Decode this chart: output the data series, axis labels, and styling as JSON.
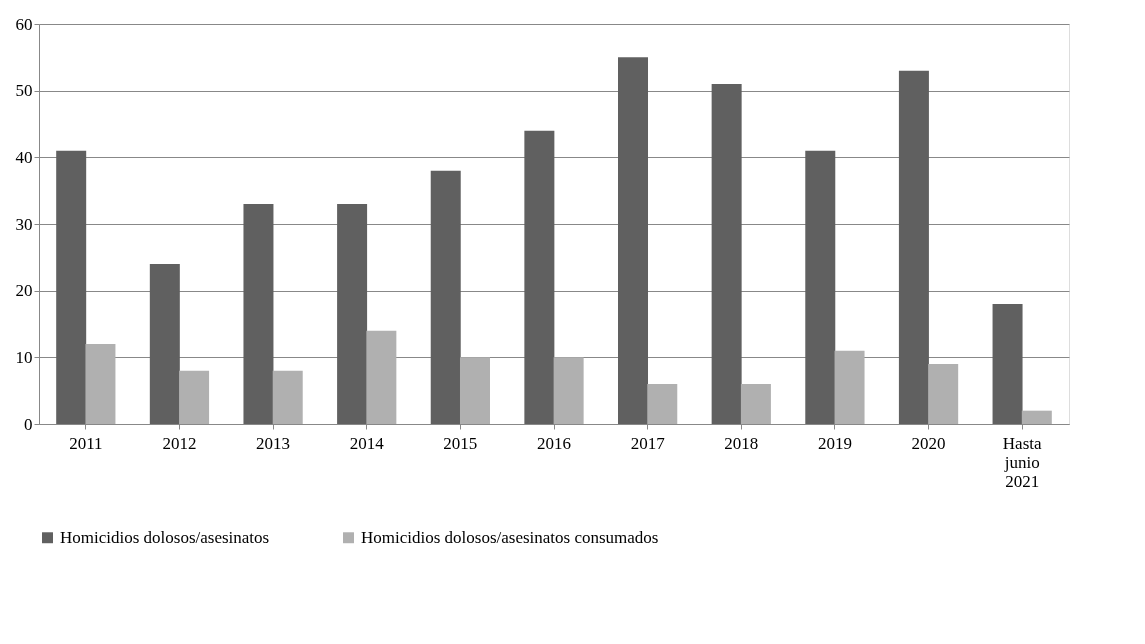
{
  "chart_data": {
    "type": "bar",
    "categories": [
      "2011",
      "2012",
      "2013",
      "2014",
      "2015",
      "2016",
      "2017",
      "2018",
      "2019",
      "2020",
      "Hasta junio 2021"
    ],
    "series": [
      {
        "name": "Homicidios dolosos/asesinatos",
        "color": "#606060",
        "values": [
          41,
          24,
          33,
          33,
          38,
          44,
          55,
          51,
          41,
          53,
          18
        ]
      },
      {
        "name": "Homicidios dolosos/asesinatos consumados",
        "color": "#b0b0b0",
        "values": [
          12,
          8,
          8,
          14,
          10,
          10,
          6,
          6,
          11,
          9,
          2
        ]
      }
    ],
    "ylim": [
      0,
      60
    ],
    "yticks": [
      0,
      10,
      20,
      30,
      40,
      50,
      60
    ],
    "grid": "y",
    "legend": "bottom"
  }
}
